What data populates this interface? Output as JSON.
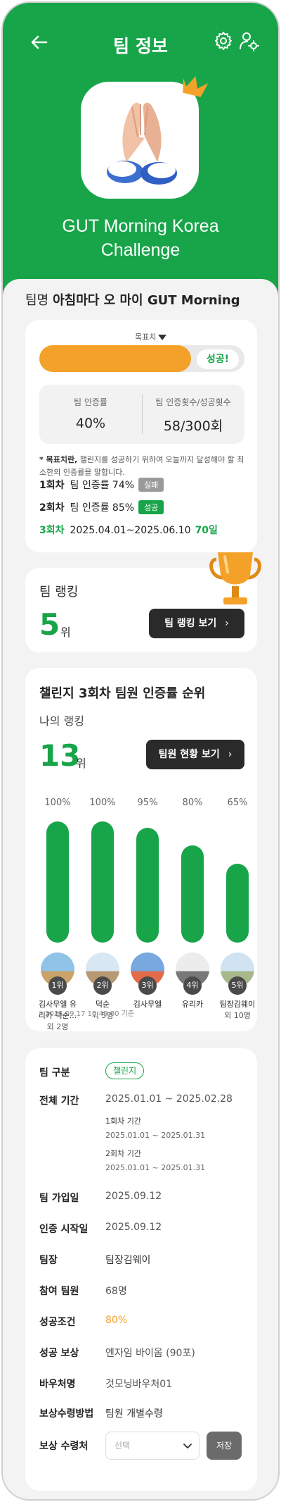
{
  "header": {
    "title": "팀 정보",
    "team_name_line1": "GUT Morning Korea",
    "team_name_line2": "Challenge"
  },
  "team": {
    "label": "팀명",
    "name": "아침마다 오 마이 GUT Morning"
  },
  "progress_card": {
    "target_label": "목표치",
    "success_label": "성공!",
    "progress_fraction": 0.74,
    "stats": [
      {
        "label": "팀 인증률",
        "value": "40%"
      },
      {
        "label": "팀 인증횟수/성공횟수",
        "value": "58/300회"
      }
    ],
    "note_bold": "* 목표치란,",
    "note_text": " 챌린지를 성공하기 위하여 오늘까지 달성해야 할 최소한의 인증률을 말합니다.",
    "rounds": [
      {
        "num": "1회차",
        "text": "팀 인증률 74%",
        "tag": "실패"
      },
      {
        "num": "2회차",
        "text": "팀 인증률 85%",
        "tag": "성공"
      },
      {
        "num": "3회차",
        "text": "2025.04.01~2025.06.10",
        "days": "70일"
      }
    ]
  },
  "team_ranking": {
    "title": "팀 랭킹",
    "rank": "5",
    "unit": "위",
    "button": "팀 랭킹 보기"
  },
  "member_ranking": {
    "title": "챌린지 3회차 팀원 인증률 순위",
    "my_rank_label": "나의 랭킹",
    "my_rank": "13",
    "unit": "위",
    "button": "팀원 현황 보기",
    "footnote": "* 2025.09.17 10:49:00 기준"
  },
  "chart_data": {
    "type": "bar",
    "categories": [
      "1위",
      "2위",
      "3위",
      "4위",
      "5위"
    ],
    "values": [
      100,
      100,
      95,
      80,
      65
    ],
    "labels": [
      "100%",
      "100%",
      "95%",
      "80%",
      "65%"
    ],
    "ylim": [
      0,
      100
    ]
  },
  "members": [
    {
      "rank": "1위",
      "name": "김사무엘 유리카 덕순...",
      "sub": "외 2명"
    },
    {
      "rank": "2위",
      "name": "덕순",
      "sub": "외 5명"
    },
    {
      "rank": "3위",
      "name": "김사무엘",
      "sub": ""
    },
    {
      "rank": "4위",
      "name": "유리카",
      "sub": ""
    },
    {
      "rank": "5위",
      "name": "팀장김웨이",
      "sub": "외 10명"
    }
  ],
  "info": {
    "type_label": "팀 구분",
    "type_value": "챌린지",
    "period_label": "전체 기간",
    "period_value": "2025.01.01 ~ 2025.02.28",
    "round1_label": "1회차 기간",
    "round1_value": "2025.01.01 ~ 2025.01.31",
    "round2_label": "2회차 기간",
    "round2_value": "2025.01.01 ~ 2025.01.31",
    "join_label": "팀 가입일",
    "join_value": "2025.09.12",
    "start_label": "인증 시작일",
    "start_value": "2025.09.12",
    "leader_label": "팀장",
    "leader_value": "팀장김웨이",
    "members_label": "참여 팀원",
    "members_value": "68명",
    "condition_label": "성공조건",
    "condition_value": "80%",
    "reward_label": "성공 보상",
    "reward_value": "엔자임 바이옴 (90포)",
    "voucher_label": "바우처명",
    "voucher_value": "것모닝바우처01",
    "method_label": "보상수령방법",
    "method_value": "팀원 개별수령",
    "place_label": "보상 수령처",
    "select_placeholder": "선택",
    "save_label": "저장"
  },
  "colors": {
    "brand_green": "#18a54a",
    "accent_orange": "#f4a12a"
  }
}
